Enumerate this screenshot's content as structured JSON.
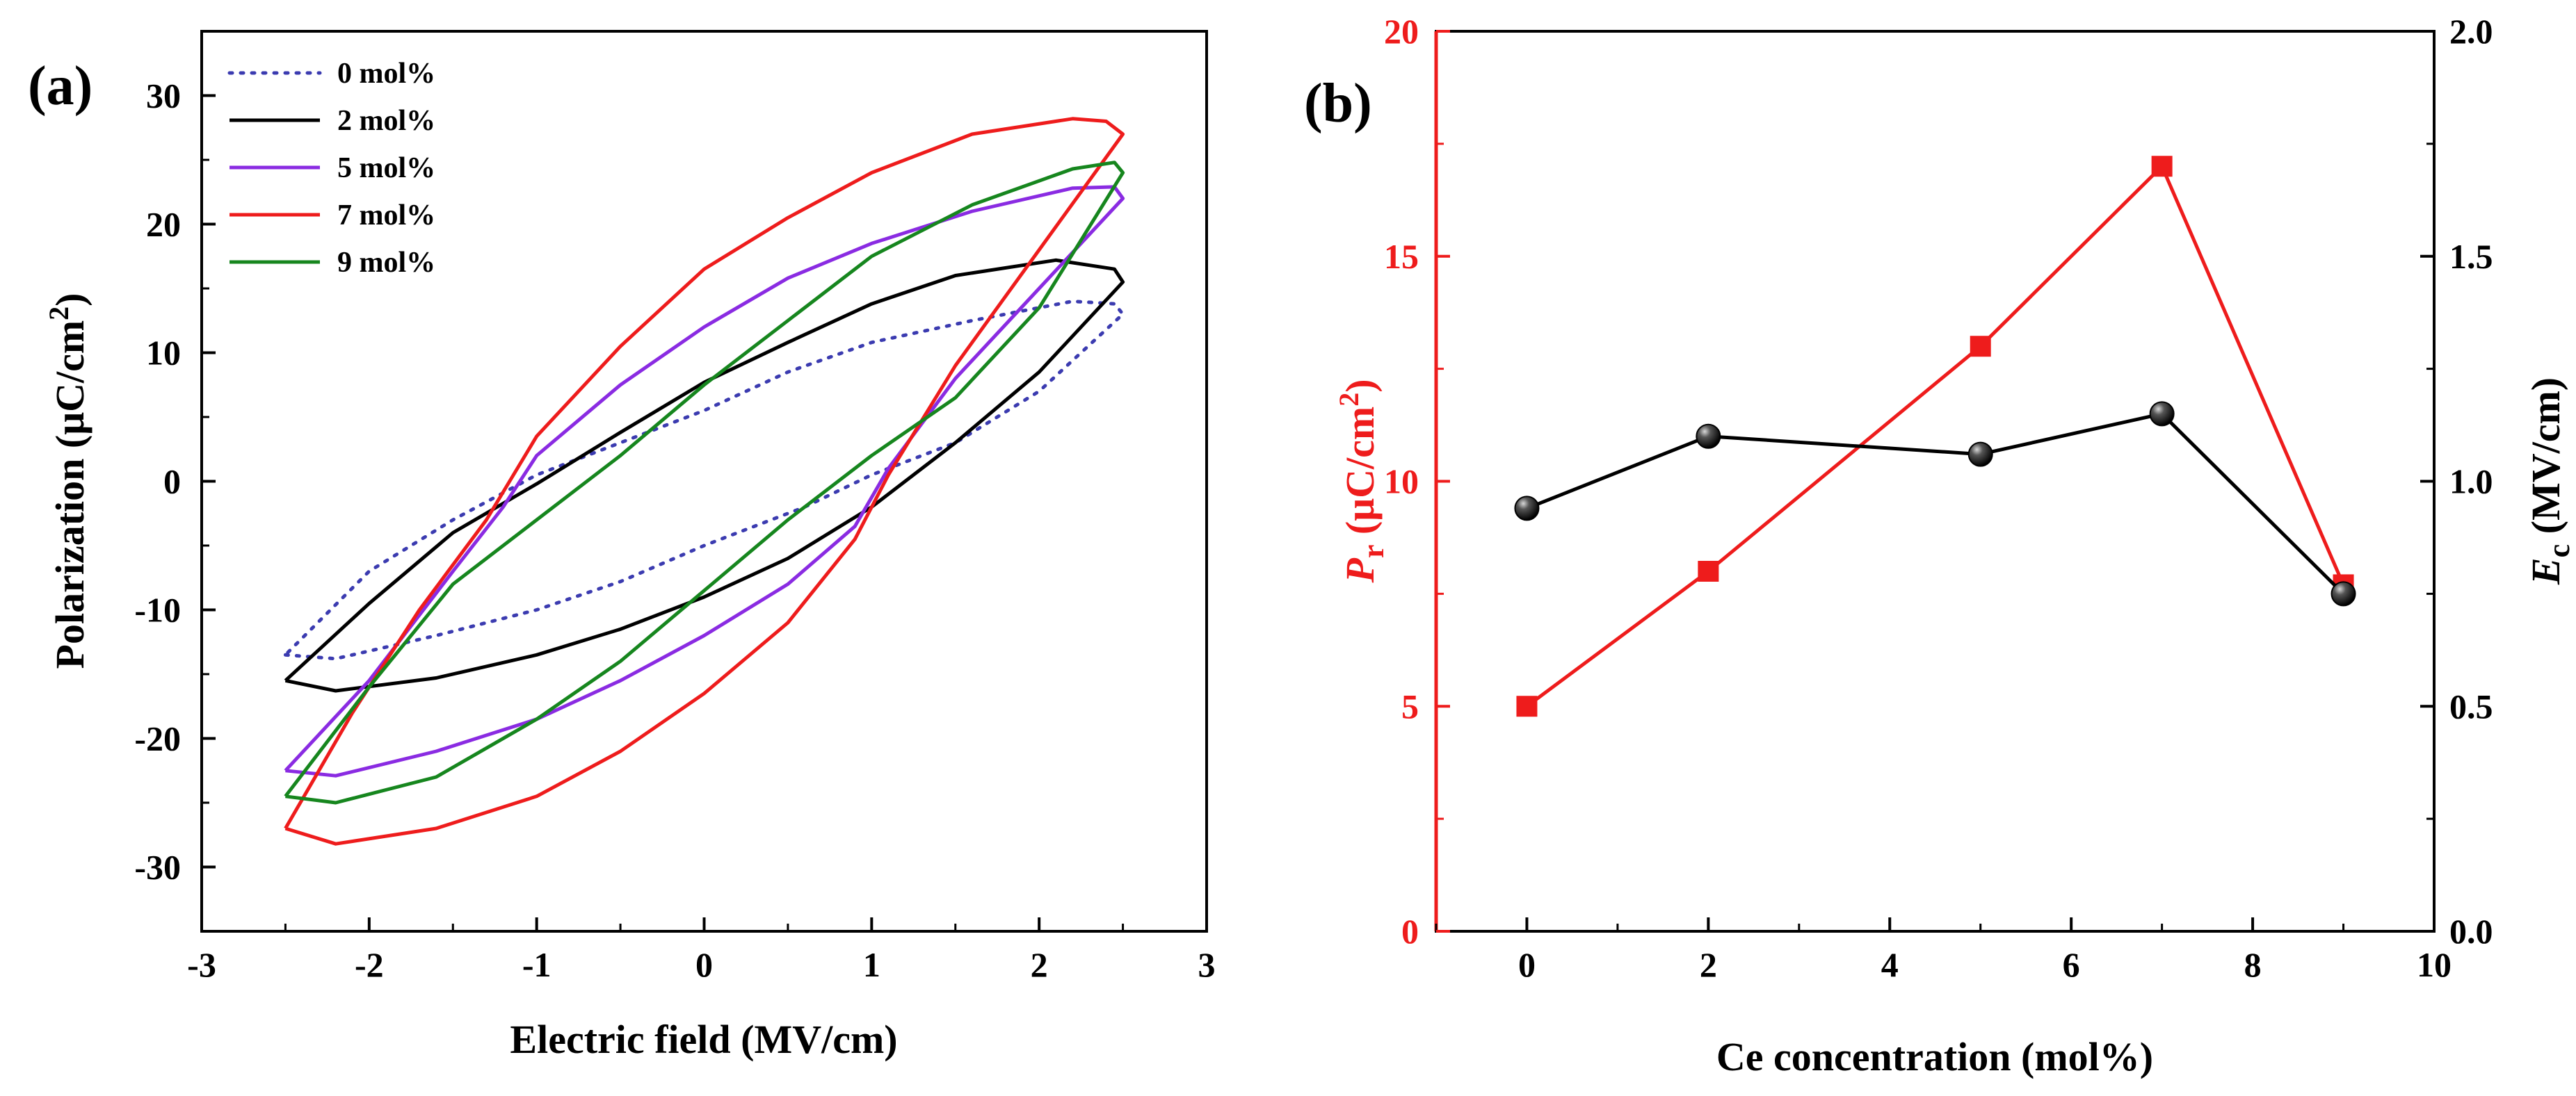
{
  "chart_data": [
    {
      "panel_label": "(a)",
      "type": "line",
      "title": "",
      "xlabel": "Electric field (MV/cm)",
      "ylabel": "Polarization (μC/cm",
      "ylabel_sup": "2",
      "ylabel_close": ")",
      "xlim": [
        -3,
        3
      ],
      "ylim": [
        -35,
        35
      ],
      "xticks": [
        "-3",
        "-2",
        "-1",
        "0",
        "1",
        "2",
        "3"
      ],
      "yticks": [
        "-30",
        "-20",
        "-10",
        "0",
        "10",
        "20",
        "30"
      ],
      "legend_position": "top-left",
      "series": [
        {
          "name": "0 mol%",
          "color": "#3b3bb0",
          "dashed": true,
          "points": [
            [
              -2.5,
              -13.5
            ],
            [
              -2.2,
              -13.8
            ],
            [
              -1.6,
              -12.0
            ],
            [
              -1.0,
              -10.0
            ],
            [
              -0.5,
              -7.8
            ],
            [
              0,
              -5.0
            ],
            [
              0.6,
              -2.0
            ],
            [
              1.0,
              0.5
            ],
            [
              1.5,
              3.0
            ],
            [
              2.0,
              7.0
            ],
            [
              2.5,
              13.0
            ],
            [
              2.45,
              13.8
            ],
            [
              2.2,
              14.0
            ],
            [
              1.6,
              12.5
            ],
            [
              1.0,
              10.8
            ],
            [
              0.5,
              8.5
            ],
            [
              0,
              5.5
            ],
            [
              -0.5,
              3.0
            ],
            [
              -1.0,
              0.5
            ],
            [
              -1.5,
              -3.0
            ],
            [
              -2.0,
              -7.0
            ],
            [
              -2.5,
              -13.5
            ]
          ]
        },
        {
          "name": "2 mol%",
          "color": "#000000",
          "dashed": false,
          "points": [
            [
              -2.5,
              -15.5
            ],
            [
              -2.2,
              -16.3
            ],
            [
              -1.6,
              -15.3
            ],
            [
              -1.0,
              -13.5
            ],
            [
              -0.5,
              -11.5
            ],
            [
              0,
              -9.0
            ],
            [
              0.5,
              -6.0
            ],
            [
              1.0,
              -2.0
            ],
            [
              1.5,
              3.0
            ],
            [
              2.0,
              8.5
            ],
            [
              2.5,
              15.5
            ],
            [
              2.45,
              16.5
            ],
            [
              2.1,
              17.2
            ],
            [
              1.5,
              16.0
            ],
            [
              1.0,
              13.8
            ],
            [
              0.5,
              10.8
            ],
            [
              0,
              7.7
            ],
            [
              -0.5,
              3.8
            ],
            [
              -1.0,
              -0.2
            ],
            [
              -1.5,
              -4.0
            ],
            [
              -2.0,
              -9.5
            ],
            [
              -2.5,
              -15.5
            ]
          ]
        },
        {
          "name": "5 mol%",
          "color": "#8a2be2",
          "dashed": false,
          "points": [
            [
              -2.5,
              -22.5
            ],
            [
              -2.2,
              -22.9
            ],
            [
              -1.6,
              -21.0
            ],
            [
              -1.0,
              -18.5
            ],
            [
              -0.5,
              -15.5
            ],
            [
              0,
              -12.0
            ],
            [
              0.5,
              -8.0
            ],
            [
              0.9,
              -3.5
            ],
            [
              1.1,
              1.0
            ],
            [
              1.5,
              8.0
            ],
            [
              2.0,
              15.0
            ],
            [
              2.5,
              22.0
            ],
            [
              2.45,
              22.9
            ],
            [
              2.2,
              22.8
            ],
            [
              1.6,
              21.0
            ],
            [
              1.0,
              18.5
            ],
            [
              0.5,
              15.8
            ],
            [
              0,
              12.0
            ],
            [
              -0.5,
              7.5
            ],
            [
              -1.0,
              2.0
            ],
            [
              -1.2,
              -2.0
            ],
            [
              -1.5,
              -7.0
            ],
            [
              -2.0,
              -15.5
            ],
            [
              -2.5,
              -22.5
            ]
          ]
        },
        {
          "name": "7 mol%",
          "color": "#ee1c1c",
          "dashed": false,
          "points": [
            [
              -2.5,
              -27.0
            ],
            [
              -2.2,
              -28.2
            ],
            [
              -1.6,
              -27.0
            ],
            [
              -1.0,
              -24.5
            ],
            [
              -0.5,
              -21.0
            ],
            [
              0,
              -16.5
            ],
            [
              0.5,
              -11.0
            ],
            [
              0.9,
              -4.5
            ],
            [
              1.1,
              0.5
            ],
            [
              1.5,
              9.0
            ],
            [
              2.0,
              18.0
            ],
            [
              2.5,
              27.0
            ],
            [
              2.4,
              28.0
            ],
            [
              2.2,
              28.2
            ],
            [
              1.6,
              27.0
            ],
            [
              1.0,
              24.0
            ],
            [
              0.5,
              20.5
            ],
            [
              0,
              16.5
            ],
            [
              -0.5,
              10.5
            ],
            [
              -1.0,
              3.5
            ],
            [
              -1.3,
              -3.0
            ],
            [
              -1.7,
              -10.0
            ],
            [
              -2.1,
              -18.0
            ],
            [
              -2.5,
              -27.0
            ]
          ]
        },
        {
          "name": "9 mol%",
          "color": "#16861e",
          "dashed": false,
          "points": [
            [
              -2.5,
              -24.5
            ],
            [
              -2.2,
              -25.0
            ],
            [
              -1.6,
              -23.0
            ],
            [
              -1.0,
              -18.5
            ],
            [
              -0.5,
              -14.0
            ],
            [
              0,
              -8.5
            ],
            [
              0.5,
              -3.0
            ],
            [
              1.0,
              2.0
            ],
            [
              1.5,
              6.5
            ],
            [
              2.0,
              13.5
            ],
            [
              2.5,
              24.0
            ],
            [
              2.45,
              24.8
            ],
            [
              2.2,
              24.3
            ],
            [
              1.6,
              21.5
            ],
            [
              1.0,
              17.5
            ],
            [
              0.5,
              12.5
            ],
            [
              0,
              7.5
            ],
            [
              -0.5,
              2.0
            ],
            [
              -1.0,
              -3.0
            ],
            [
              -1.5,
              -8.0
            ],
            [
              -2.0,
              -16.0
            ],
            [
              -2.5,
              -24.5
            ]
          ]
        }
      ]
    },
    {
      "panel_label": "(b)",
      "type": "line",
      "title": "",
      "xlabel": "Ce concentration (mol%)",
      "xlim": [
        -1,
        10
      ],
      "xticks": [
        "0",
        "2",
        "4",
        "6",
        "8",
        "10"
      ],
      "y_left": {
        "label_symbol": "P",
        "label_sub": "r",
        "label_unit": " (μC/cm",
        "label_sup": "2",
        "label_close": ")",
        "ylim": [
          0,
          20
        ],
        "ticks": [
          "0",
          "5",
          "10",
          "15",
          "20"
        ],
        "color": "#ee1c1c"
      },
      "y_right": {
        "label_symbol": "E",
        "label_sub": "c",
        "label_unit": " (MV/cm)",
        "ylim": [
          0,
          2
        ],
        "ticks": [
          "0.0",
          "0.5",
          "1.0",
          "1.5",
          "2.0"
        ],
        "color": "#000000"
      },
      "series": [
        {
          "name": "Pr",
          "axis": "left",
          "marker": "square",
          "color": "#ee1c1c",
          "x": [
            0,
            2,
            5,
            7,
            9
          ],
          "values": [
            5,
            8,
            13,
            17,
            7.7
          ]
        },
        {
          "name": "Ec",
          "axis": "right",
          "marker": "sphere",
          "color": "#000000",
          "x": [
            0,
            2,
            5,
            7,
            9
          ],
          "values": [
            0.94,
            1.1,
            1.06,
            1.15,
            0.75
          ]
        }
      ]
    }
  ]
}
